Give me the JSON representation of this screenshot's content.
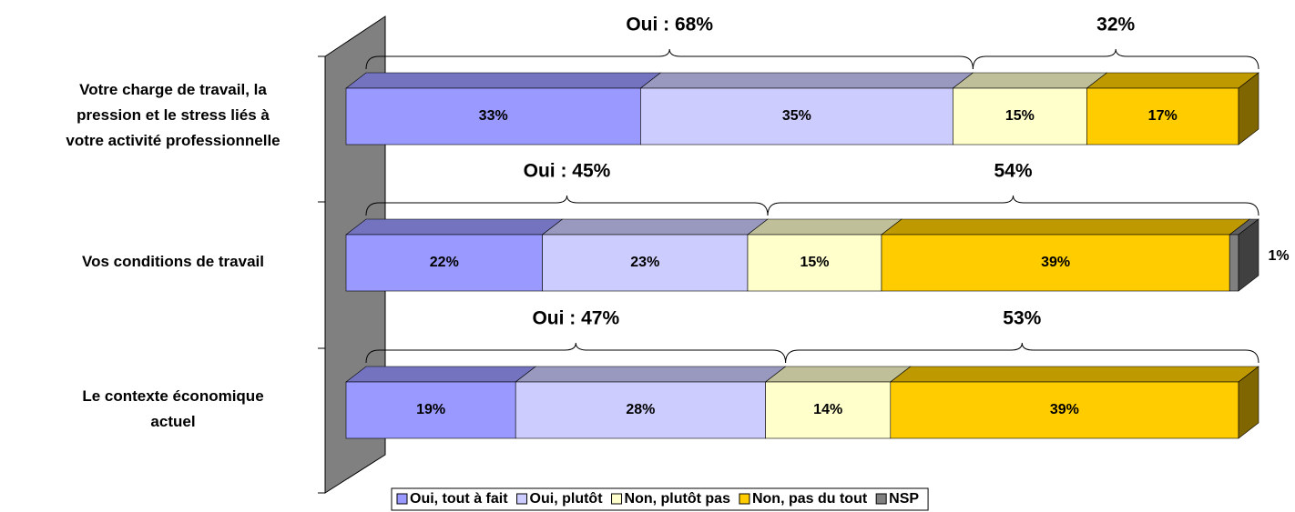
{
  "chart_data": {
    "type": "stacked_bar_horizontal",
    "categories": [
      "Votre charge de travail, la\npression et le stress liés à\nvotre activité professionnelle",
      "Vos conditions de travail",
      "Le contexte économique\nactuel"
    ],
    "series": [
      {
        "name": "Oui, tout à fait",
        "color": "#9999ff",
        "values": [
          33,
          22,
          19
        ],
        "value_labels": [
          "33%",
          "22%",
          "19%"
        ]
      },
      {
        "name": "Oui, plutôt",
        "color": "#ccccff",
        "values": [
          35,
          23,
          28
        ],
        "value_labels": [
          "35%",
          "23%",
          "28%"
        ]
      },
      {
        "name": "Non, plutôt pas",
        "color": "#ffffcc",
        "values": [
          15,
          15,
          14
        ],
        "value_labels": [
          "15%",
          "15%",
          "14%"
        ]
      },
      {
        "name": "Non, pas du tout",
        "color": "#ffcc00",
        "values": [
          17,
          39,
          39
        ],
        "value_labels": [
          "17%",
          "39%",
          "39%"
        ]
      },
      {
        "name": "NSP",
        "color": "#808080",
        "values": [
          null,
          1,
          null
        ],
        "value_labels": [
          null,
          "1%",
          null
        ]
      }
    ],
    "brace_labels": [
      [
        "Oui : 68%",
        "32%"
      ],
      [
        "Oui : 45%",
        "54%"
      ],
      [
        "Oui : 47%",
        "53%"
      ]
    ],
    "xlim": [
      0,
      100
    ],
    "legend": "bottom"
  }
}
